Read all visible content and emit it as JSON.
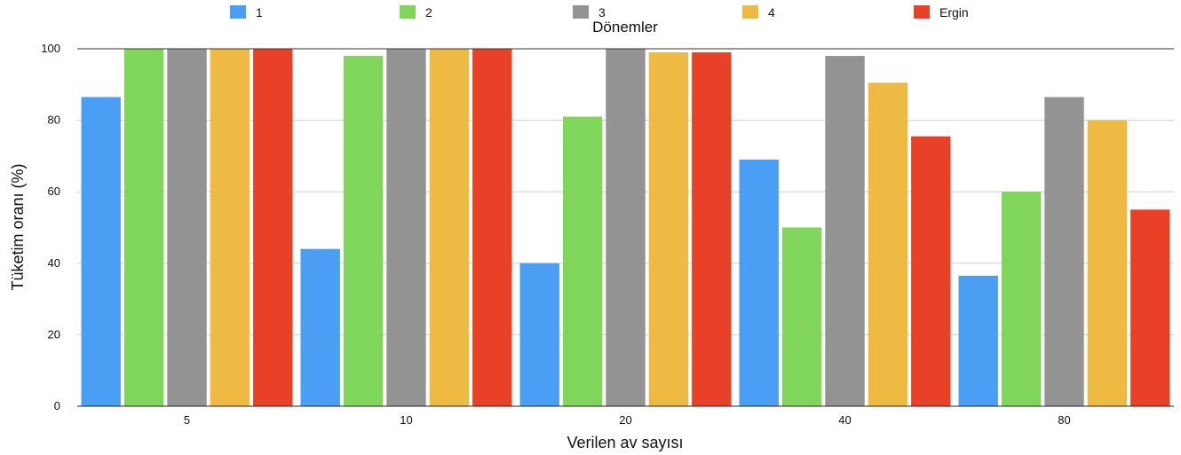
{
  "chart_data": {
    "type": "bar",
    "title": "",
    "legend_title": "Dönemler",
    "legend_position": "top",
    "xlabel": "Verilen av sayısı",
    "ylabel": "Tüketim oranı (%)",
    "ylim": [
      0,
      100
    ],
    "yticks": [
      0,
      20,
      40,
      60,
      80,
      100
    ],
    "grid": true,
    "categories": [
      "5",
      "10",
      "20",
      "40",
      "80"
    ],
    "series": [
      {
        "name": "1",
        "color": "#4a9ff5",
        "values": [
          86.5,
          44,
          40,
          69,
          36.5
        ]
      },
      {
        "name": "2",
        "color": "#7fd65a",
        "values": [
          100,
          98,
          81,
          50,
          60
        ]
      },
      {
        "name": "3",
        "color": "#939393",
        "values": [
          100,
          100,
          100,
          98,
          86.5
        ]
      },
      {
        "name": "4",
        "color": "#eeba43",
        "values": [
          100,
          100,
          99,
          90.5,
          80
        ]
      },
      {
        "name": "Ergin",
        "color": "#e94128",
        "values": [
          100,
          100,
          99,
          75.5,
          55
        ]
      }
    ]
  }
}
